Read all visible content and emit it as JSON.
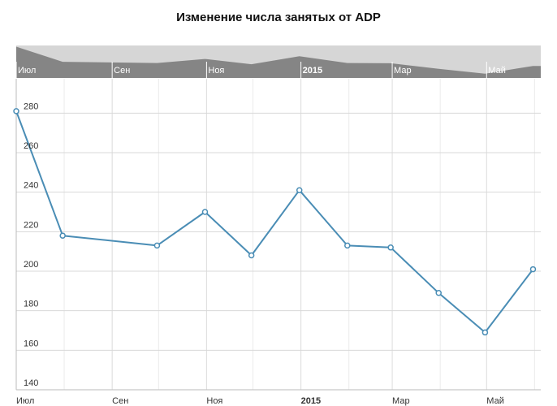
{
  "chart_data": {
    "type": "line",
    "title": "Изменение числа занятых от ADP",
    "xlabel": "",
    "ylabel": "",
    "x": [
      "2014-07-01",
      "2014-07-31",
      "2014-09-30",
      "2014-10-31",
      "2014-11-30",
      "2014-12-31",
      "2015-01-31",
      "2015-02-28",
      "2015-03-31",
      "2015-04-30",
      "2015-05-31"
    ],
    "series": [
      {
        "name": "",
        "color": "#4a8db5",
        "values": [
          281,
          218,
          213,
          230,
          208,
          241,
          213,
          212,
          189,
          169,
          201
        ]
      }
    ],
    "ylim": [
      140,
      290
    ],
    "xlim": [
      "2014-07-01",
      "2015-06-05"
    ],
    "yticks": [
      140,
      160,
      180,
      200,
      220,
      240,
      260,
      280
    ],
    "xticks": [
      {
        "date": "2014-07-01",
        "label": "Июл",
        "bold": false
      },
      {
        "date": "2014-09-01",
        "label": "Сен",
        "bold": false
      },
      {
        "date": "2014-11-01",
        "label": "Ноя",
        "bold": false
      },
      {
        "date": "2015-01-01",
        "label": "2015",
        "bold": true
      },
      {
        "date": "2015-03-01",
        "label": "Мар",
        "bold": false
      },
      {
        "date": "2015-05-01",
        "label": "Май",
        "bold": false
      }
    ],
    "minor_xgrid": [
      "2014-08-01",
      "2014-10-01",
      "2014-12-01",
      "2015-02-01",
      "2015-04-01",
      "2015-06-01"
    ],
    "grid": true,
    "legend": "none",
    "navigator": {
      "present": true,
      "fill_color": "#858585",
      "background_color": "#d6d6d6"
    }
  }
}
